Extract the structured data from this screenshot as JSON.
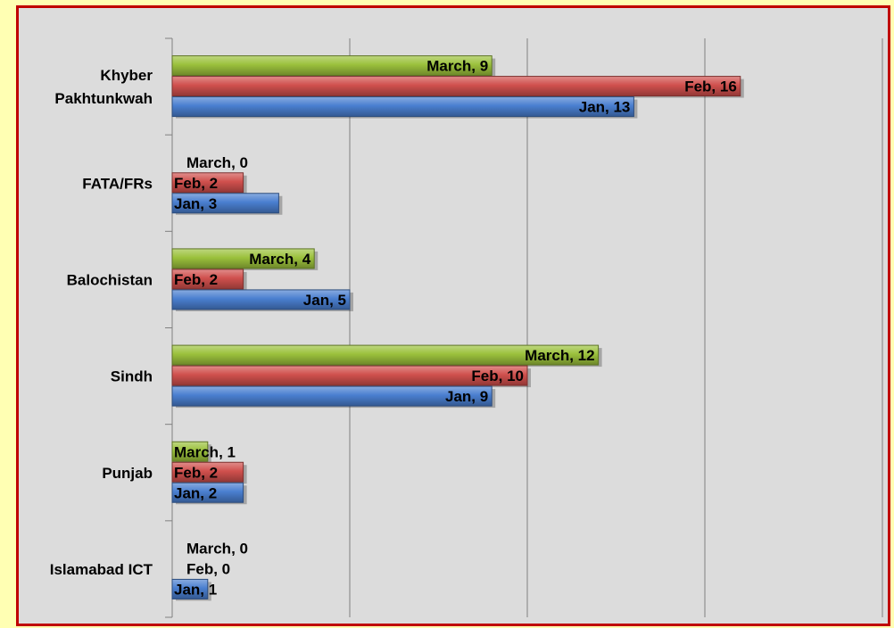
{
  "chart_data": {
    "type": "bar",
    "orientation": "horizontal",
    "categories": [
      "Khyber Pakhtunkwah",
      "FATA/FRs",
      "Balochistan",
      "Sindh",
      "Punjab",
      "Islamabad ICT"
    ],
    "category_lines": [
      [
        "Khyber",
        "Pakhtunkwah"
      ],
      [
        "FATA/FRs"
      ],
      [
        "Balochistan"
      ],
      [
        "Sindh"
      ],
      [
        "Punjab"
      ],
      [
        "Islamabad ICT"
      ]
    ],
    "series": [
      {
        "name": "Jan",
        "color": "#4a7fd0",
        "values": [
          13,
          3,
          5,
          9,
          2,
          1
        ]
      },
      {
        "name": "Feb",
        "color": "#d0504d",
        "values": [
          16,
          2,
          2,
          10,
          2,
          0
        ]
      },
      {
        "name": "March",
        "color": "#9bc13c",
        "values": [
          9,
          0,
          4,
          12,
          1,
          0
        ]
      }
    ],
    "data_labels": [
      [
        "Jan, 13",
        "Jan, 3",
        "Jan, 5",
        "Jan, 9",
        "Jan, 2",
        "Jan, 1"
      ],
      [
        "Feb, 16",
        "Feb, 2",
        "Feb, 2",
        "Feb, 10",
        "Feb, 2",
        "Feb, 0"
      ],
      [
        "March, 9",
        "March, 0",
        "March, 4",
        "March, 12",
        "March, 1",
        "March, 0"
      ]
    ],
    "xlim": [
      0,
      20
    ],
    "gridlines": true,
    "title": "",
    "xlabel": "",
    "ylabel": "",
    "legend": "none",
    "colors": {
      "background": "#dcdcdc",
      "page": "#ffffb3",
      "border": "#c00000",
      "grid": "#808080"
    }
  }
}
